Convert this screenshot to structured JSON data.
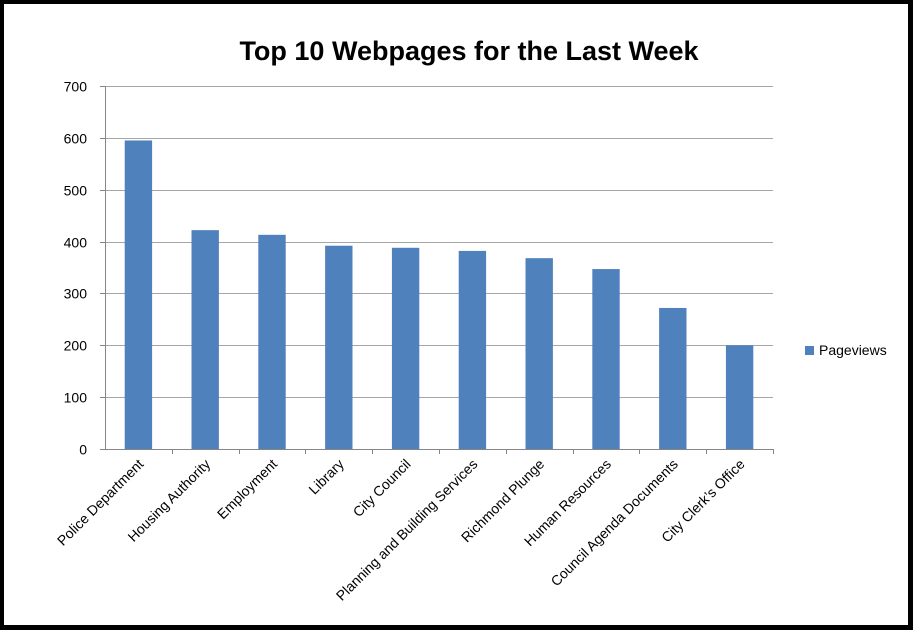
{
  "chart_data": {
    "type": "bar",
    "title": "Top 10 Webpages for the Last Week",
    "xlabel": "",
    "ylabel": "",
    "categories": [
      "Police Department",
      "Housing Authority",
      "Employment",
      "Library",
      "City Council",
      "Planning and Building Services",
      "Richmond Plunge",
      "Human Resources",
      "Council Agenda Documents",
      "City Clerk’s Office"
    ],
    "series": [
      {
        "name": "Pageviews",
        "values": [
          595,
          422,
          413,
          392,
          388,
          382,
          368,
          347,
          272,
          200
        ],
        "color": "#4f81bd"
      }
    ],
    "ylim": [
      0,
      700
    ],
    "yticks": [
      0,
      100,
      200,
      300,
      400,
      500,
      600,
      700
    ],
    "grid": true,
    "legend": "right"
  }
}
